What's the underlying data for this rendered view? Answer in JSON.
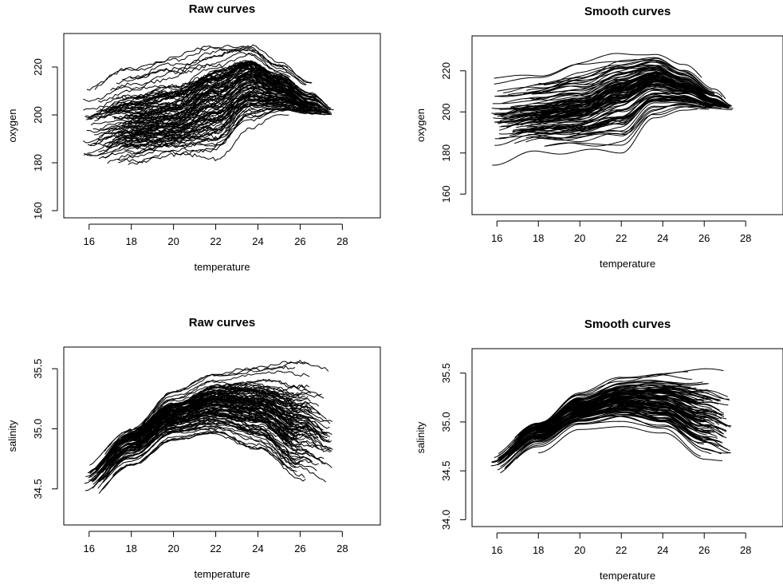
{
  "chart_data": [
    {
      "type": "line",
      "panel": "top-left",
      "title": "Raw curves",
      "xlabel": "temperature",
      "ylabel": "oxygen",
      "xlim": [
        14.8,
        29.8
      ],
      "ylim": [
        157,
        234
      ],
      "xticks": [
        16,
        18,
        20,
        22,
        24,
        26,
        28
      ],
      "yticks": [
        160,
        180,
        200,
        220
      ],
      "grid": false,
      "legend": "none",
      "series_summary": {
        "count": 110,
        "x_range": [
          15.7,
          27.6
        ],
        "mean_curve_anchors": {
          "x": [
            15.7,
            18,
            20,
            22,
            23.6,
            25,
            26.5,
            27.6
          ],
          "y": [
            196,
            199,
            201,
            210,
            217,
            212,
            205,
            201
          ]
        },
        "envelope_upper_y": [
          210,
          218,
          224,
          228,
          229,
          222,
          214,
          205
        ],
        "envelope_lower_y": [
          173,
          180,
          182,
          182,
          195,
          200,
          200,
          200
        ]
      }
    },
    {
      "type": "line",
      "panel": "top-right",
      "title": "Smooth curves",
      "xlabel": "temperature",
      "ylabel": "oxygen",
      "xlim": [
        14.8,
        29.8
      ],
      "ylim": [
        150,
        237
      ],
      "xticks": [
        16,
        18,
        20,
        22,
        24,
        26,
        28
      ],
      "yticks": [
        160,
        180,
        200,
        220
      ],
      "grid": false,
      "legend": "none",
      "series_summary": {
        "count": 110,
        "x_range": [
          15.7,
          27.4
        ],
        "mean_curve_anchors": {
          "x": [
            15.7,
            18,
            20,
            22,
            23.6,
            25,
            26.5,
            27.4
          ],
          "y": [
            196,
            199,
            201,
            210,
            216,
            212,
            205,
            202
          ]
        },
        "envelope_upper_y": [
          215,
          219,
          224,
          228,
          228,
          222,
          212,
          204
        ],
        "envelope_lower_y": [
          176,
          181,
          181,
          181,
          196,
          201,
          201,
          201
        ]
      }
    },
    {
      "type": "line",
      "panel": "bottom-left",
      "title": "Raw curves",
      "xlabel": "temperature",
      "ylabel": "salinity",
      "xlim": [
        14.8,
        29.8
      ],
      "ylim": [
        34.2,
        35.68
      ],
      "xticks": [
        16,
        18,
        20,
        22,
        24,
        26,
        28
      ],
      "yticks": [
        34.5,
        35.0,
        35.5
      ],
      "grid": false,
      "legend": "none",
      "series_summary": {
        "count": 110,
        "x_range": [
          15.7,
          27.6
        ],
        "mean_curve_anchors": {
          "x": [
            15.7,
            18,
            20,
            22,
            24,
            26,
            27.5
          ],
          "y": [
            34.58,
            34.92,
            35.12,
            35.22,
            35.18,
            35.02,
            34.9
          ]
        },
        "envelope_upper_y": [
          34.68,
          35.0,
          35.3,
          35.45,
          35.5,
          35.52,
          35.5
        ],
        "envelope_lower_y": [
          34.4,
          34.7,
          34.92,
          34.96,
          34.85,
          34.6,
          34.55
        ]
      }
    },
    {
      "type": "line",
      "panel": "bottom-right",
      "title": "Smooth curves",
      "xlabel": "temperature",
      "ylabel": "salinity",
      "xlim": [
        14.8,
        29.8
      ],
      "ylim": [
        33.93,
        35.75
      ],
      "xticks": [
        16,
        18,
        20,
        22,
        24,
        26,
        28
      ],
      "yticks": [
        34.0,
        34.5,
        35.0,
        35.5
      ],
      "grid": false,
      "legend": "none",
      "series_summary": {
        "count": 110,
        "x_range": [
          15.7,
          27.4
        ],
        "mean_curve_anchors": {
          "x": [
            15.7,
            18,
            20,
            22,
            24,
            26,
            27.4
          ],
          "y": [
            34.58,
            34.92,
            35.12,
            35.22,
            35.18,
            35.02,
            34.9
          ]
        },
        "envelope_upper_y": [
          34.68,
          35.0,
          35.3,
          35.45,
          35.5,
          35.5,
          35.48
        ],
        "envelope_lower_y": [
          34.4,
          34.7,
          34.92,
          34.96,
          34.85,
          34.58,
          34.55
        ]
      }
    }
  ]
}
